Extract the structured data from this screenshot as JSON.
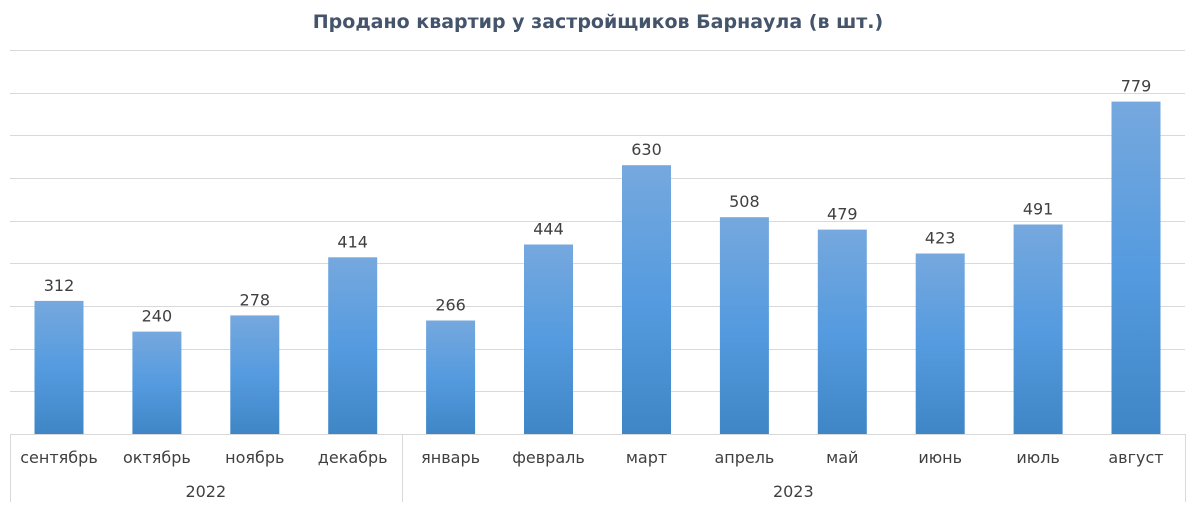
{
  "chart_data": {
    "type": "bar",
    "title": "Продано квартир у застройщиков Барнаула (в шт.)",
    "categories": [
      "сентябрь",
      "октябрь",
      "ноябрь",
      "декабрь",
      "январь",
      "февраль",
      "март",
      "апрель",
      "май",
      "июнь",
      "июль",
      "август"
    ],
    "groups": [
      {
        "label": "2022",
        "count": 4
      },
      {
        "label": "2023",
        "count": 8
      }
    ],
    "series": [
      {
        "values": [
          312,
          240,
          278,
          414,
          266,
          444,
          630,
          508,
          479,
          423,
          491,
          779
        ]
      }
    ],
    "ylim": [
      0,
      900
    ],
    "y_gridline_step": 100,
    "grid": true,
    "y_axis_labels_visible": false,
    "data_labels": true,
    "colors": {
      "bar_top": "#76a8de",
      "bar_mid": "#559bdf",
      "bar_bottom": "#3f86c6",
      "text": "#404040",
      "title": "#44546a",
      "grid": "#d9d9d9"
    }
  }
}
